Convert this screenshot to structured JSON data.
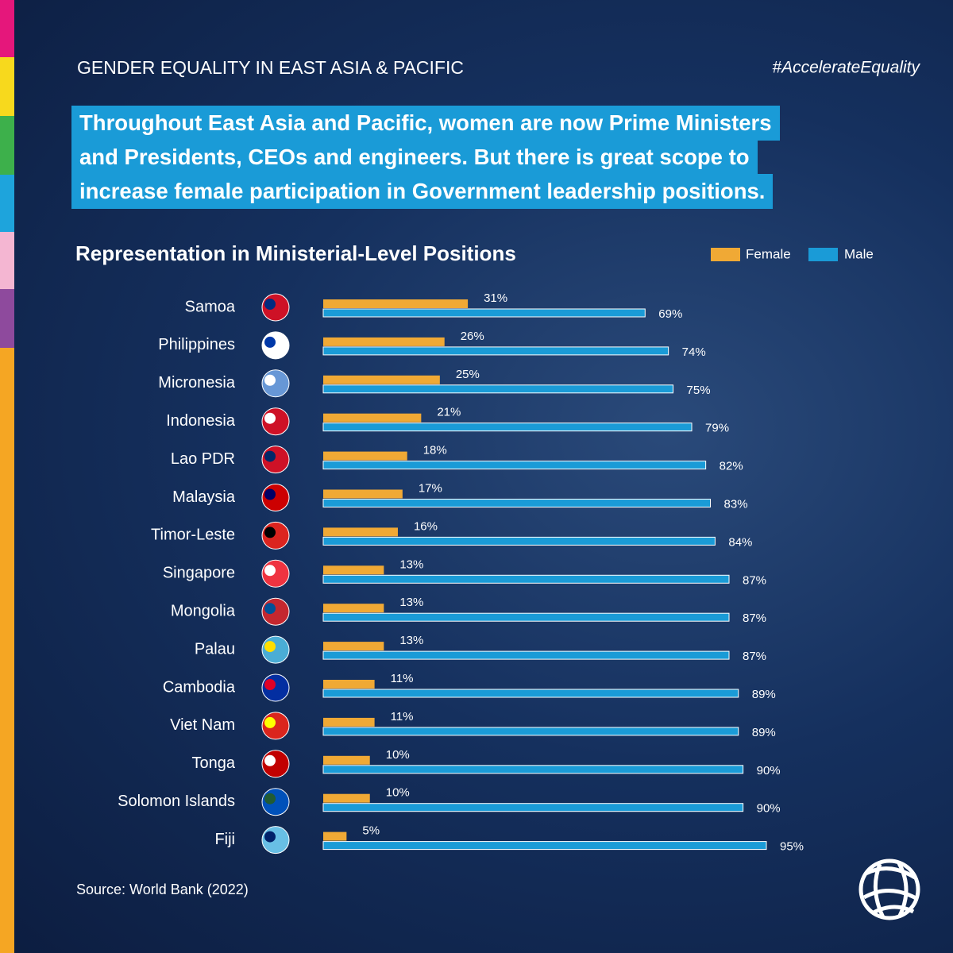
{
  "header": {
    "kicker": "GENDER EQUALITY IN EAST ASIA & PACIFIC",
    "hashtag": "#AccelerateEquality",
    "headline": [
      "Throughout East Asia and Pacific, women are now Prime Ministers",
      "and Presidents, CEOs and engineers. But there is great scope to",
      "increase female participation in Government leadership positions."
    ]
  },
  "chart_data": {
    "type": "bar",
    "orientation": "horizontal",
    "title": "Representation in Ministerial-Level Positions",
    "categories": [
      "Samoa",
      "Philippines",
      "Micronesia",
      "Indonesia",
      "Lao PDR",
      "Malaysia",
      "Timor-Leste",
      "Singapore",
      "Mongolia",
      "Palau",
      "Cambodia",
      "Viet Nam",
      "Tonga",
      "Solomon Islands",
      "Fiji"
    ],
    "series": [
      {
        "name": "Female",
        "color": "#f0a935",
        "values": [
          31,
          26,
          25,
          21,
          18,
          17,
          16,
          13,
          13,
          13,
          11,
          11,
          10,
          10,
          5
        ],
        "value_labels": [
          "31%",
          "26%",
          "25%",
          "21%",
          "18%",
          "17%",
          "16%",
          "13%",
          "13%",
          "13%",
          "11%",
          "11%",
          "10%",
          "10%",
          "5%"
        ]
      },
      {
        "name": "Male",
        "color": "#1a9bd7",
        "values": [
          69,
          74,
          75,
          79,
          82,
          83,
          84,
          87,
          87,
          87,
          89,
          89,
          90,
          90,
          95
        ],
        "value_labels": [
          "69%",
          "74%",
          "75%",
          "79%",
          "82%",
          "83%",
          "84%",
          "87%",
          "87%",
          "87%",
          "89%",
          "89%",
          "90%",
          "90%",
          "95%"
        ]
      }
    ],
    "legend": "top-right",
    "source": "Source: World Bank (2022)"
  }
}
